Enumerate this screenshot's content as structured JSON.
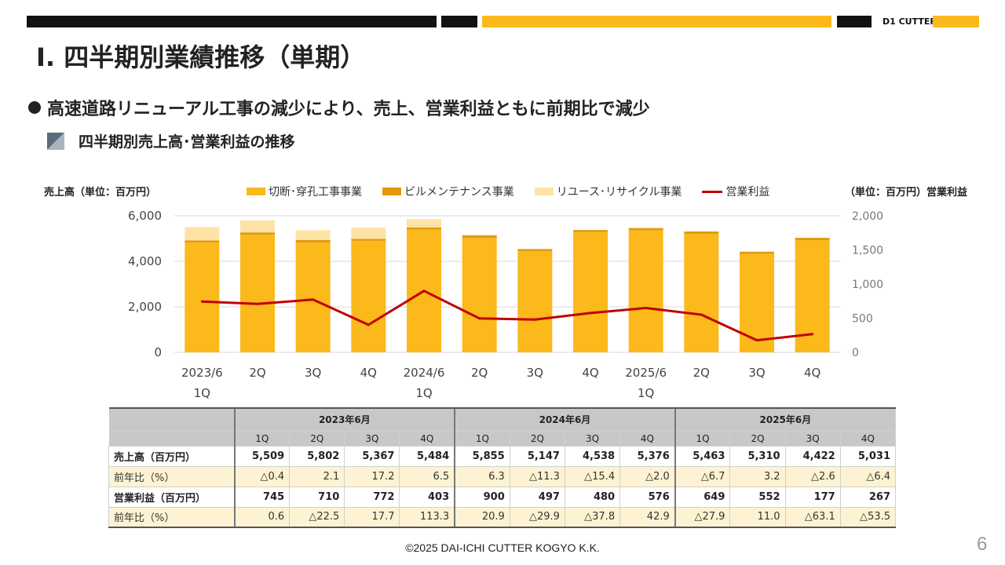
{
  "brand": "D1 CUTTER",
  "page_title": "Ⅰ. 四半期別業績推移（単期）",
  "headline": "高速道路リニューアル工事の減少により、売上、営業利益ともに前期比で減少",
  "subhead": "四半期別売上高･営業利益の推移",
  "left_axis_title": "売上高（単位：百万円）",
  "right_axis_title": "（単位：百万円）営業利益",
  "colors": {
    "cutting": "#fbb91c",
    "building": "#e09a10",
    "reuse": "#fde3a6",
    "profit": "#c00000",
    "accent_bar": "#fbb91c"
  },
  "chart_data": {
    "type": "bar",
    "categories": [
      "2023/6\n1Q",
      "2Q",
      "3Q",
      "4Q",
      "2024/6\n1Q",
      "2Q",
      "3Q",
      "4Q",
      "2025/6\n1Q",
      "2Q",
      "3Q",
      "4Q"
    ],
    "series": [
      {
        "name": "切断･穿孔工事事業",
        "type": "bar",
        "axis": "left",
        "values": [
          4830,
          5170,
          4830,
          4900,
          5400,
          5030,
          4440,
          5290,
          5360,
          5210,
          4320,
          4930
        ]
      },
      {
        "name": "ビルメンテナンス事業",
        "type": "bar",
        "axis": "left",
        "values": [
          90,
          100,
          110,
          90,
          90,
          117,
          98,
          86,
          103,
          100,
          102,
          101
        ]
      },
      {
        "name": "リユース･リサイクル事業",
        "type": "bar",
        "axis": "left",
        "values": [
          589,
          532,
          427,
          494,
          365,
          0,
          0,
          0,
          0,
          0,
          0,
          0
        ]
      },
      {
        "name": "営業利益",
        "type": "line",
        "axis": "right",
        "values": [
          745,
          710,
          772,
          403,
          900,
          497,
          480,
          576,
          649,
          552,
          177,
          267
        ]
      }
    ],
    "yticks_left": [
      "0",
      "2,000",
      "4,000",
      "6,000"
    ],
    "yticks_right": [
      "0",
      "500",
      "1,000",
      "1,500",
      "2,000"
    ],
    "ylim_left": [
      0,
      6000
    ],
    "ylim_right": [
      0,
      2000
    ],
    "grid": true,
    "legend_position": "top"
  },
  "table": {
    "years": [
      "2023年6月",
      "2024年6月",
      "2025年6月"
    ],
    "quarters": [
      "1Q",
      "2Q",
      "3Q",
      "4Q"
    ],
    "rows": [
      {
        "label": "売上高（百万円）",
        "style": "bold",
        "values": [
          "5,509",
          "5,802",
          "5,367",
          "5,484",
          "5,855",
          "5,147",
          "4,538",
          "5,376",
          "5,463",
          "5,310",
          "4,422",
          "5,031"
        ]
      },
      {
        "label": "前年比（%）",
        "style": "yoy",
        "values": [
          "△0.4",
          "2.1",
          "17.2",
          "6.5",
          "6.3",
          "△11.3",
          "△15.4",
          "△2.0",
          "△6.7",
          "3.2",
          "△2.6",
          "△6.4"
        ]
      },
      {
        "label": "営業利益（百万円）",
        "style": "bold",
        "values": [
          "745",
          "710",
          "772",
          "403",
          "900",
          "497",
          "480",
          "576",
          "649",
          "552",
          "177",
          "267"
        ]
      },
      {
        "label": "前年比（%）",
        "style": "yoy",
        "values": [
          "0.6",
          "△22.5",
          "17.7",
          "113.3",
          "20.9",
          "△29.9",
          "△37.8",
          "42.9",
          "△27.9",
          "11.0",
          "△63.1",
          "△53.5"
        ]
      }
    ]
  },
  "footer": "©2025 DAI-ICHI CUTTER KOGYO K.K.",
  "page_number": "6"
}
